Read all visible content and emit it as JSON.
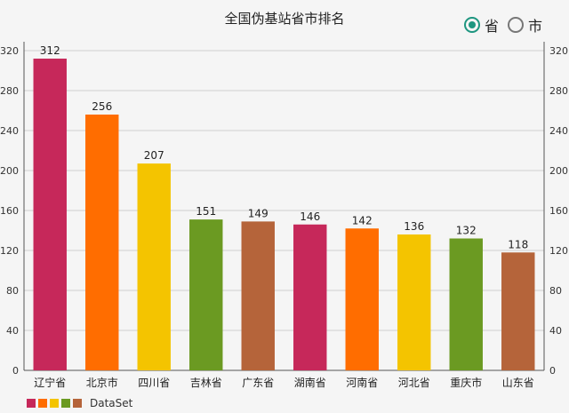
{
  "page": {
    "title": "全国伪基站省市排名",
    "radio": {
      "options": [
        {
          "label": "省",
          "checked": true
        },
        {
          "label": "市",
          "checked": false
        }
      ]
    }
  },
  "legend": {
    "label": "DataSet",
    "colors": [
      "#c6285a",
      "#ff6d00",
      "#f4c400",
      "#6b9a22",
      "#b5643a"
    ]
  },
  "chart_data": {
    "type": "bar",
    "title": "全国伪基站省市排名",
    "categories": [
      "辽宁省",
      "北京市",
      "四川省",
      "吉林省",
      "广东省",
      "湖南省",
      "河南省",
      "河北省",
      "重庆市",
      "山东省"
    ],
    "values": [
      312,
      256,
      207,
      151,
      149,
      146,
      142,
      136,
      132,
      118
    ],
    "colors": [
      "#c6285a",
      "#ff6d00",
      "#f4c400",
      "#6b9a22",
      "#b5643a",
      "#c6285a",
      "#ff6d00",
      "#f4c400",
      "#6b9a22",
      "#b5643a"
    ],
    "ylim": [
      0,
      320
    ],
    "yticks": [
      0,
      40,
      80,
      120,
      160,
      200,
      240,
      280,
      320
    ],
    "grid": true,
    "legend_position": "bottom-left",
    "series": [
      {
        "name": "DataSet"
      }
    ]
  }
}
